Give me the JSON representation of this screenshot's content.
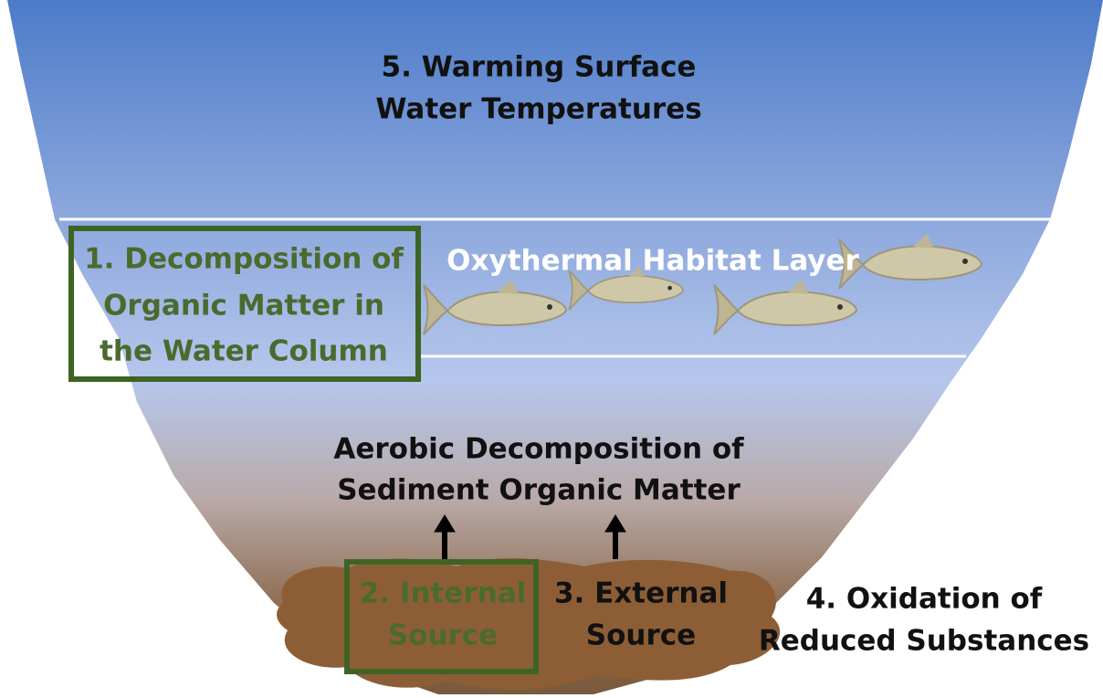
{
  "nodes": [
    {
      "lines": [
        "5. Warming Surface",
        "Water Temperatures"
      ]
    },
    {
      "lines": [
        "1. Decomposition of",
        "Organic Matter in",
        "the Water Column"
      ]
    },
    {
      "lines": [
        "Oxythermal Habitat Layer"
      ]
    },
    {
      "lines": [
        "Aerobic Decomposition of",
        "Sediment Organic Matter"
      ]
    },
    {
      "lines": [
        "2. Internal",
        "Source"
      ]
    },
    {
      "lines": [
        "3. External",
        "Source"
      ]
    },
    {
      "lines": [
        "4. Oxidation of",
        "Reduced Substances"
      ]
    }
  ]
}
